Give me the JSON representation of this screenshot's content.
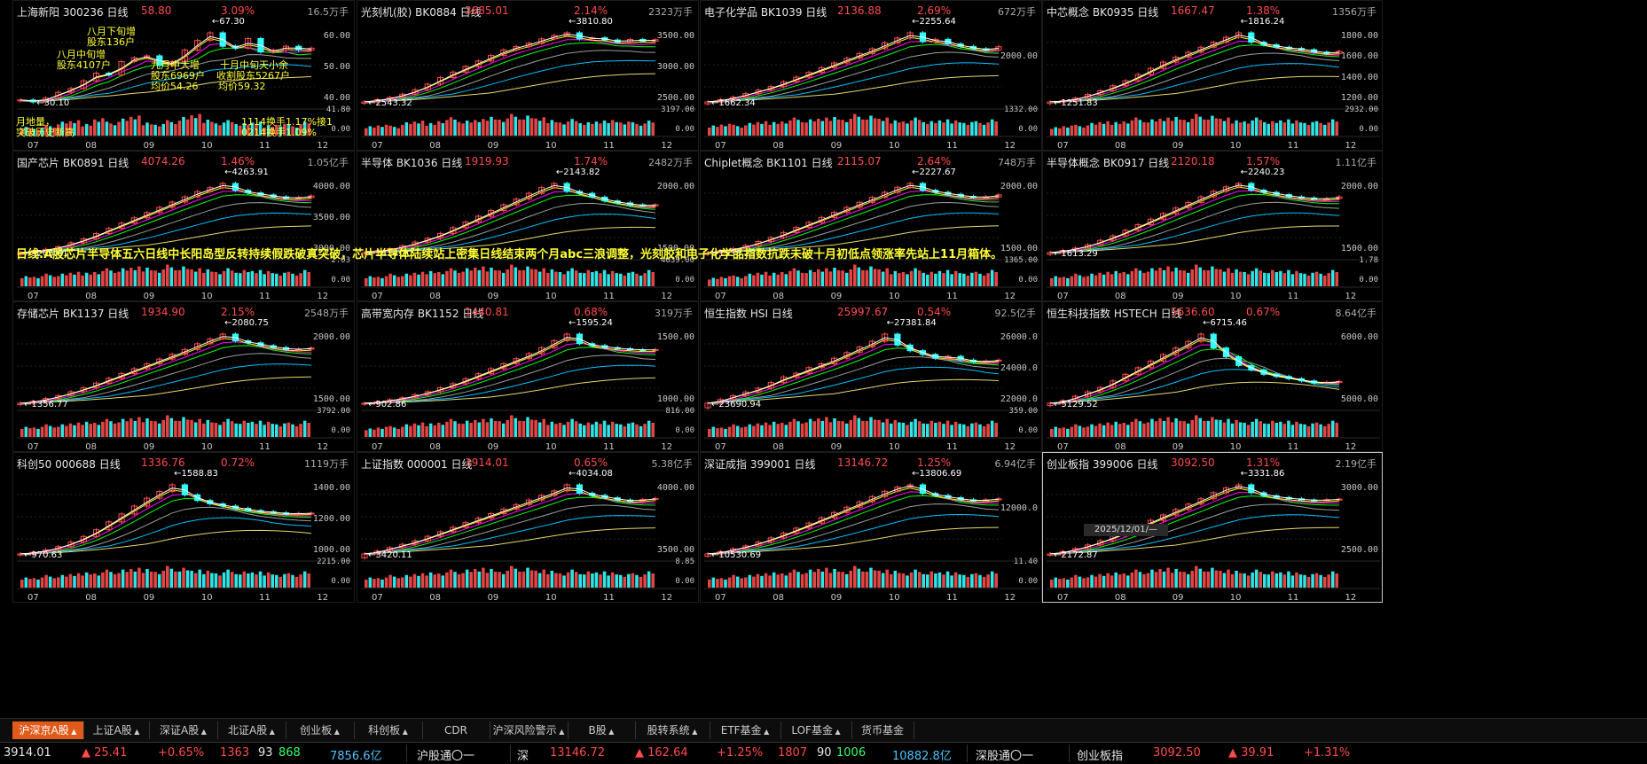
{
  "colors": {
    "up": "#ff4b4b",
    "down": "#33ffff",
    "ma5": "#ffffff",
    "ma10": "#ffff00",
    "ma20": "#ff00ff",
    "ma30": "#00ff00",
    "ma60": "#9e9e9e",
    "ma120": "#00bfff",
    "ma250": "#e6d96b",
    "annotation": "#ffff33",
    "active_tab": "#e05a1a"
  },
  "x_labels": [
    "07",
    "08",
    "09",
    "10",
    "11",
    "12"
  ],
  "charts": [
    {
      "name": "上海新阳 300236 日线",
      "price": "58.80",
      "pct": "3.09%",
      "vol": "16.5万手",
      "y_ticks": [
        "60.00",
        "50.00",
        "40.00"
      ],
      "v_ticks": [
        "41.80",
        "0.00"
      ],
      "peak": "67.30",
      "low": "30.10",
      "closes": [
        32,
        31,
        33,
        36,
        38,
        42,
        46,
        45,
        52,
        54,
        55,
        50,
        52,
        58,
        63,
        67,
        60,
        59,
        64,
        57,
        58,
        60,
        58,
        59
      ],
      "vols": [
        6,
        5,
        7,
        9,
        10,
        8,
        12,
        9,
        11,
        13,
        9,
        8,
        10,
        12,
        14,
        11,
        9,
        10,
        8,
        9,
        7,
        8,
        7,
        9
      ]
    },
    {
      "name": "光刻机(胶) BK0884 日线",
      "price": "3685.01",
      "pct": "2.14%",
      "vol": "2323万手",
      "y_ticks": [
        "3500.00",
        "3000.00",
        "2500.00"
      ],
      "v_ticks": [
        "3197.00",
        "0.00"
      ],
      "peak": "3810.80",
      "low": "2543.32",
      "closes": [
        2560,
        2600,
        2640,
        2700,
        2780,
        2880,
        3000,
        3100,
        3200,
        3300,
        3400,
        3500,
        3560,
        3620,
        3700,
        3760,
        3810,
        3700,
        3720,
        3680,
        3640,
        3690,
        3660,
        3685
      ],
      "vols": [
        6,
        7,
        6,
        8,
        9,
        8,
        10,
        11,
        9,
        10,
        12,
        11,
        13,
        12,
        11,
        10,
        9,
        10,
        8,
        9,
        10,
        9,
        8,
        9
      ]
    },
    {
      "name": "电子化学品 BK1039 日线",
      "price": "2136.88",
      "pct": "2.69%",
      "vol": "672万手",
      "y_ticks": [
        "2000.00"
      ],
      "v_ticks": [
        "1332.00",
        "0.00"
      ],
      "peak": "2255.64",
      "low": "1662.34",
      "closes": [
        1670,
        1690,
        1710,
        1740,
        1770,
        1800,
        1840,
        1880,
        1920,
        1960,
        2000,
        2040,
        2080,
        2120,
        2170,
        2210,
        2255,
        2180,
        2200,
        2160,
        2140,
        2120,
        2110,
        2137
      ],
      "vols": [
        6,
        7,
        6,
        7,
        8,
        8,
        9,
        10,
        9,
        10,
        11,
        10,
        12,
        11,
        10,
        9,
        9,
        10,
        8,
        9,
        9,
        8,
        8,
        9
      ]
    },
    {
      "name": "中芯概念 BK0935 日线",
      "price": "1667.47",
      "pct": "1.38%",
      "vol": "1356万手",
      "y_ticks": [
        "1800.00",
        "1600.00",
        "1400.00",
        "1200.00"
      ],
      "v_ticks": [
        "2932.00",
        "0.00"
      ],
      "peak": "1816.24",
      "low": "1251.83",
      "closes": [
        1260,
        1270,
        1290,
        1320,
        1350,
        1390,
        1430,
        1480,
        1530,
        1580,
        1620,
        1660,
        1700,
        1740,
        1780,
        1816,
        1740,
        1720,
        1700,
        1690,
        1680,
        1660,
        1650,
        1667
      ],
      "vols": [
        5,
        6,
        6,
        7,
        8,
        8,
        9,
        10,
        9,
        10,
        11,
        10,
        12,
        11,
        10,
        9,
        9,
        10,
        8,
        9,
        9,
        8,
        8,
        9
      ]
    },
    {
      "name": "国产芯片 BK0891 日线",
      "price": "4074.26",
      "pct": "1.46%",
      "vol": "1.05亿手",
      "y_ticks": [
        "4000.00",
        "3500.00",
        "3000.00"
      ],
      "v_ticks": [
        "2.03",
        "0.00"
      ],
      "peak": "4263.91",
      "low": "3205.61",
      "closes": [
        3210,
        3230,
        3260,
        3300,
        3360,
        3420,
        3500,
        3580,
        3660,
        3740,
        3820,
        3900,
        3980,
        4060,
        4140,
        4200,
        4264,
        4160,
        4120,
        4090,
        4060,
        4040,
        4050,
        4074
      ],
      "vols": [
        6,
        6,
        7,
        7,
        8,
        8,
        9,
        10,
        10,
        11,
        11,
        10,
        12,
        11,
        10,
        10,
        9,
        10,
        9,
        9,
        9,
        8,
        8,
        9
      ]
    },
    {
      "name": "半导体 BK1036 日线",
      "price": "1919.93",
      "pct": "1.74%",
      "vol": "2482万手",
      "y_ticks": [
        "2000.00",
        "1500.00"
      ],
      "v_ticks": [
        "4639.00",
        "0.00"
      ],
      "peak": "2143.82",
      "low": "1414.30",
      "closes": [
        1420,
        1440,
        1460,
        1490,
        1530,
        1570,
        1620,
        1680,
        1740,
        1800,
        1860,
        1920,
        1980,
        2040,
        2100,
        2143,
        2060,
        2040,
        2000,
        1960,
        1940,
        1920,
        1910,
        1920
      ],
      "vols": [
        6,
        6,
        7,
        7,
        8,
        9,
        9,
        10,
        10,
        11,
        11,
        10,
        12,
        11,
        10,
        10,
        9,
        10,
        9,
        9,
        9,
        8,
        8,
        9
      ]
    },
    {
      "name": "Chiplet概念 BK1101 日线",
      "price": "2115.07",
      "pct": "2.64%",
      "vol": "748万手",
      "y_ticks": [
        "2000.00",
        "1500.00"
      ],
      "v_ticks": [
        "1365.00",
        "0.00"
      ],
      "peak": "2227.67",
      "low": "1538.25",
      "closes": [
        1540,
        1560,
        1580,
        1610,
        1650,
        1690,
        1740,
        1790,
        1840,
        1890,
        1940,
        1990,
        2040,
        2090,
        2140,
        2190,
        2228,
        2160,
        2140,
        2120,
        2100,
        2090,
        2095,
        2115
      ],
      "vols": [
        5,
        6,
        6,
        7,
        8,
        8,
        9,
        10,
        9,
        10,
        11,
        10,
        12,
        11,
        10,
        9,
        9,
        10,
        8,
        9,
        9,
        8,
        8,
        9
      ]
    },
    {
      "name": "半导体概念 BK0917 日线",
      "price": "2120.18",
      "pct": "1.57%",
      "vol": "1.11亿手",
      "y_ticks": [
        "2000.00",
        "1500.00"
      ],
      "v_ticks": [
        "1.78",
        "0.00"
      ],
      "peak": "2240.23",
      "low": "1613.29",
      "closes": [
        1620,
        1640,
        1660,
        1690,
        1730,
        1770,
        1820,
        1870,
        1920,
        1970,
        2020,
        2070,
        2120,
        2170,
        2210,
        2240,
        2180,
        2160,
        2140,
        2120,
        2110,
        2100,
        2105,
        2120
      ],
      "vols": [
        6,
        6,
        7,
        7,
        8,
        9,
        9,
        10,
        10,
        11,
        11,
        10,
        12,
        11,
        10,
        10,
        9,
        10,
        9,
        9,
        9,
        8,
        8,
        9
      ]
    },
    {
      "name": "存储芯片 BK1137 日线",
      "price": "1934.90",
      "pct": "2.15%",
      "vol": "2548万手",
      "y_ticks": [
        "2000.00",
        "1500.00"
      ],
      "v_ticks": [
        "3792.00",
        "0.00"
      ],
      "peak": "2080.75",
      "low": "1356.77",
      "closes": [
        1360,
        1380,
        1410,
        1440,
        1480,
        1520,
        1570,
        1620,
        1670,
        1720,
        1770,
        1820,
        1870,
        1920,
        1980,
        2030,
        2080,
        2010,
        1990,
        1960,
        1940,
        1920,
        1925,
        1935
      ],
      "vols": [
        6,
        6,
        7,
        7,
        8,
        9,
        9,
        10,
        10,
        11,
        11,
        10,
        12,
        11,
        10,
        10,
        9,
        10,
        9,
        9,
        9,
        8,
        8,
        9
      ]
    },
    {
      "name": "高带宽内存 BK1152 日线",
      "price": "1440.81",
      "pct": "0.68%",
      "vol": "319万手",
      "y_ticks": [
        "1500.00",
        "1000.00"
      ],
      "v_ticks": [
        "816.00",
        "0.00"
      ],
      "peak": "1595.24",
      "low": "902.86",
      "closes": [
        905,
        920,
        940,
        960,
        990,
        1020,
        1060,
        1100,
        1150,
        1200,
        1250,
        1300,
        1350,
        1400,
        1460,
        1530,
        1595,
        1500,
        1480,
        1460,
        1450,
        1440,
        1435,
        1441
      ],
      "vols": [
        5,
        6,
        6,
        7,
        8,
        8,
        9,
        10,
        9,
        10,
        11,
        10,
        12,
        11,
        10,
        9,
        9,
        10,
        8,
        9,
        9,
        8,
        8,
        9
      ]
    },
    {
      "name": "恒生指数 HSI 日线",
      "price": "25997.67",
      "pct": "0.54%",
      "vol": "92.5亿手",
      "y_ticks": [
        "26000.0",
        "24000.0",
        "22000.0"
      ],
      "v_ticks": [
        "359.00",
        "0.00"
      ],
      "peak": "27381.84",
      "low": "23690.94",
      "closes": [
        23700,
        23900,
        24100,
        24300,
        24500,
        24800,
        25100,
        25300,
        25600,
        25800,
        26100,
        26400,
        26700,
        27000,
        27381,
        26800,
        26500,
        26300,
        26100,
        26200,
        26000,
        25900,
        25950,
        25998
      ],
      "vols": [
        6,
        6,
        7,
        7,
        8,
        9,
        9,
        10,
        10,
        11,
        11,
        10,
        12,
        11,
        10,
        10,
        9,
        10,
        9,
        9,
        9,
        8,
        8,
        9
      ]
    },
    {
      "name": "恒生科技指数 HSTECH 日线",
      "price": "5636.60",
      "pct": "0.67%",
      "vol": "8.64亿手",
      "y_ticks": [
        "6000.00",
        "5000.00"
      ],
      "v_ticks": [],
      "peak": "6715.46",
      "low": "5129.52",
      "closes": [
        5140,
        5200,
        5300,
        5400,
        5500,
        5650,
        5800,
        5950,
        6100,
        6250,
        6400,
        6550,
        6715,
        6400,
        6200,
        6000,
        5900,
        5800,
        5750,
        5700,
        5650,
        5600,
        5620,
        5637
      ],
      "vols": [
        6,
        6,
        7,
        7,
        8,
        9,
        9,
        10,
        10,
        11,
        11,
        10,
        12,
        11,
        10,
        10,
        9,
        10,
        9,
        9,
        9,
        8,
        8,
        9
      ]
    },
    {
      "name": "科创50 000688 日线",
      "price": "1336.76",
      "pct": "0.72%",
      "vol": "1119万手",
      "y_ticks": [
        "1400.00",
        "1200.00",
        "1000.00"
      ],
      "v_ticks": [
        "2215.00",
        "0.00"
      ],
      "peak": "1588.83",
      "low": "970.63",
      "closes": [
        975,
        990,
        1010,
        1040,
        1080,
        1130,
        1190,
        1260,
        1330,
        1400,
        1470,
        1530,
        1589,
        1500,
        1450,
        1420,
        1400,
        1380,
        1360,
        1350,
        1340,
        1330,
        1335,
        1337
      ],
      "vols": [
        6,
        6,
        7,
        7,
        8,
        9,
        9,
        10,
        10,
        11,
        11,
        10,
        12,
        11,
        10,
        10,
        9,
        10,
        9,
        9,
        9,
        8,
        8,
        9
      ]
    },
    {
      "name": "上证指数 000001 日线",
      "price": "3914.01",
      "pct": "0.65%",
      "vol": "5.38亿手",
      "y_ticks": [
        "4000.00",
        "3500.00"
      ],
      "v_ticks": [
        "8.85",
        "0.00"
      ],
      "peak": "4034.08",
      "low": "3420.11",
      "closes": [
        3425,
        3450,
        3480,
        3510,
        3540,
        3580,
        3620,
        3660,
        3700,
        3740,
        3780,
        3820,
        3860,
        3900,
        3940,
        3980,
        4034,
        3960,
        3940,
        3920,
        3900,
        3890,
        3905,
        3914
      ],
      "vols": [
        6,
        6,
        7,
        7,
        8,
        9,
        9,
        10,
        10,
        11,
        11,
        10,
        12,
        11,
        10,
        10,
        9,
        10,
        9,
        9,
        9,
        8,
        8,
        9
      ]
    },
    {
      "name": "深证成指 399001 日线",
      "price": "13146.72",
      "pct": "1.25%",
      "vol": "6.94亿手",
      "y_ticks": [
        "12000.0"
      ],
      "v_ticks": [
        "11.40",
        "0.00"
      ],
      "peak": "13806.69",
      "low": "10530.69",
      "closes": [
        10540,
        10650,
        10780,
        10920,
        11100,
        11300,
        11520,
        11760,
        12000,
        12250,
        12500,
        12750,
        13000,
        13250,
        13500,
        13700,
        13807,
        13400,
        13300,
        13200,
        13100,
        13050,
        13100,
        13147
      ],
      "vols": [
        6,
        6,
        7,
        7,
        8,
        9,
        9,
        10,
        10,
        11,
        11,
        10,
        12,
        11,
        10,
        10,
        9,
        10,
        9,
        9,
        9,
        8,
        8,
        9
      ]
    },
    {
      "name": "创业板指 399006 日线",
      "price": "3092.50",
      "pct": "1.31%",
      "vol": "2.19亿手",
      "y_ticks": [
        "3000.00",
        "2500.00"
      ],
      "v_ticks": [],
      "peak": "3331.86",
      "low": "2172.87",
      "closes": [
        2180,
        2220,
        2270,
        2330,
        2400,
        2480,
        2560,
        2650,
        2740,
        2830,
        2920,
        3010,
        3100,
        3200,
        3280,
        3332,
        3200,
        3150,
        3120,
        3100,
        3080,
        3070,
        3085,
        3093
      ],
      "vols": [
        6,
        6,
        7,
        7,
        8,
        9,
        9,
        10,
        10,
        11,
        11,
        10,
        12,
        11,
        10,
        10,
        9,
        10,
        9,
        9,
        9,
        8,
        8,
        9
      ]
    }
  ],
  "annotations": [
    "八月下旬增",
    "股东136户",
    "八月中旬增",
    "股东4107户",
    "九月中大增",
    "股东6969户",
    "均价54.26",
    "十月中旬天小余",
    "收割股东5267户",
    "均价59.32",
    "月地量，",
    "突破历史新高",
    "1114换手1.17%接1",
    "0214换手1.09%"
  ],
  "banner": "日线:A股芯片半导体五六日线中长阳岛型反转持续假跌破真突破，芯片半导体陆续站上密集日线结束两个月abc三浪调整，光刻胶和电子化学品指数抗跌未破十月初低点领涨率先站上11月箱体。",
  "crosshair_date": "2025/12/01/—",
  "tabs": [
    "沪深京A股",
    "上证A股",
    "深证A股",
    "北证A股",
    "创业板",
    "科创板",
    "CDR",
    "沪深风险警示",
    "B股",
    "股转系统",
    "ETF基金",
    "LOF基金",
    "货币基金"
  ],
  "status": {
    "sh_index": "3914.01",
    "sh_chg": "▲ 25.41",
    "sh_pct": "+0.65%",
    "sh_up": "1363",
    "sh_flat": "93",
    "sh_down": "868",
    "sh_amt": "7856.6亿",
    "hgt": "沪股通〇一",
    "sz_label": "深",
    "sz_index": "13146.72",
    "sz_chg": "▲ 162.64",
    "sz_pct": "+1.25%",
    "sz_up": "1807",
    "sz_flat": "90",
    "sz_down": "1006",
    "sz_amt": "10882.8亿",
    "sgt": "深股通〇一",
    "cyb_label": "创业板指",
    "cyb_index": "3092.50",
    "cyb_chg": "▲ 39.91",
    "cyb_pct": "+1.31%"
  }
}
